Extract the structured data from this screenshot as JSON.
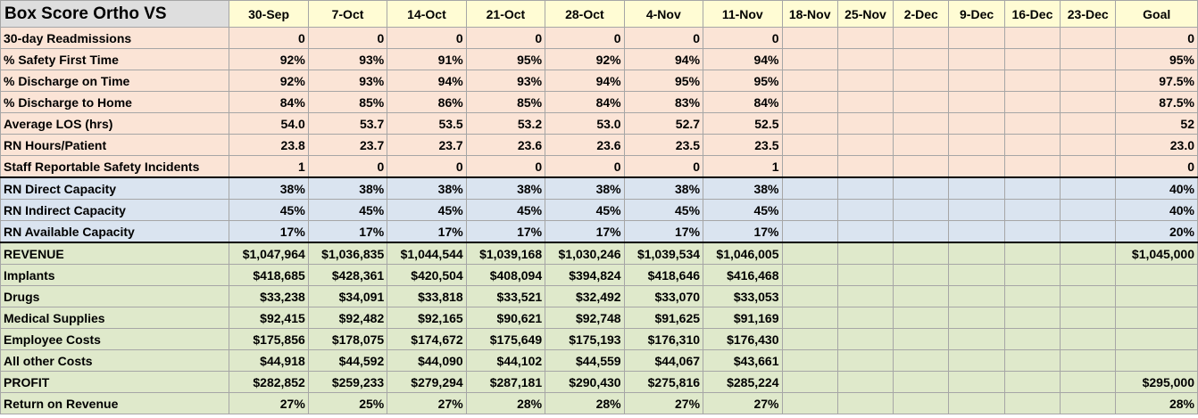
{
  "title": "Box Score Ortho VS",
  "columns": [
    "30-Sep",
    "7-Oct",
    "14-Oct",
    "21-Oct",
    "28-Oct",
    "4-Nov",
    "11-Nov",
    "18-Nov",
    "25-Nov",
    "2-Dec",
    "9-Dec",
    "16-Dec",
    "23-Dec",
    "Goal"
  ],
  "groups": [
    {
      "name": "quality",
      "color": "#fbe4d6",
      "rows": [
        {
          "label": "30-day Readmissions",
          "values": [
            "0",
            "0",
            "0",
            "0",
            "0",
            "0",
            "0",
            "",
            "",
            "",
            "",
            "",
            "",
            "0"
          ]
        },
        {
          "label": "% Safety First Time",
          "values": [
            "92%",
            "93%",
            "91%",
            "95%",
            "92%",
            "94%",
            "94%",
            "",
            "",
            "",
            "",
            "",
            "",
            "95%"
          ]
        },
        {
          "label": "% Discharge on Time",
          "values": [
            "92%",
            "93%",
            "94%",
            "93%",
            "94%",
            "95%",
            "95%",
            "",
            "",
            "",
            "",
            "",
            "",
            "97.5%"
          ]
        },
        {
          "label": "% Discharge to Home",
          "values": [
            "84%",
            "85%",
            "86%",
            "85%",
            "84%",
            "83%",
            "84%",
            "",
            "",
            "",
            "",
            "",
            "",
            "87.5%"
          ]
        },
        {
          "label": "Average LOS (hrs)",
          "values": [
            "54.0",
            "53.7",
            "53.5",
            "53.2",
            "53.0",
            "52.7",
            "52.5",
            "",
            "",
            "",
            "",
            "",
            "",
            "52"
          ]
        },
        {
          "label": "RN Hours/Patient",
          "values": [
            "23.8",
            "23.7",
            "23.7",
            "23.6",
            "23.6",
            "23.5",
            "23.5",
            "",
            "",
            "",
            "",
            "",
            "",
            "23.0"
          ]
        },
        {
          "label": "Staff Reportable Safety Incidents",
          "values": [
            "1",
            "0",
            "0",
            "0",
            "0",
            "0",
            "1",
            "",
            "",
            "",
            "",
            "",
            "",
            "0"
          ]
        }
      ]
    },
    {
      "name": "capacity",
      "color": "#dae4f0",
      "rows": [
        {
          "label": "RN Direct Capacity",
          "values": [
            "38%",
            "38%",
            "38%",
            "38%",
            "38%",
            "38%",
            "38%",
            "",
            "",
            "",
            "",
            "",
            "",
            "40%"
          ]
        },
        {
          "label": "RN Indirect Capacity",
          "values": [
            "45%",
            "45%",
            "45%",
            "45%",
            "45%",
            "45%",
            "45%",
            "",
            "",
            "",
            "",
            "",
            "",
            "40%"
          ]
        },
        {
          "label": "RN Available Capacity",
          "values": [
            "17%",
            "17%",
            "17%",
            "17%",
            "17%",
            "17%",
            "17%",
            "",
            "",
            "",
            "",
            "",
            "",
            "20%"
          ]
        }
      ]
    },
    {
      "name": "finance",
      "color": "#dfe9cb",
      "rows": [
        {
          "label": "REVENUE",
          "values": [
            "$1,047,964",
            "$1,036,835",
            "$1,044,544",
            "$1,039,168",
            "$1,030,246",
            "$1,039,534",
            "$1,046,005",
            "",
            "",
            "",
            "",
            "",
            "",
            "$1,045,000"
          ]
        },
        {
          "label": "Implants",
          "values": [
            "$418,685",
            "$428,361",
            "$420,504",
            "$408,094",
            "$394,824",
            "$418,646",
            "$416,468",
            "",
            "",
            "",
            "",
            "",
            "",
            ""
          ]
        },
        {
          "label": "Drugs",
          "values": [
            "$33,238",
            "$34,091",
            "$33,818",
            "$33,521",
            "$32,492",
            "$33,070",
            "$33,053",
            "",
            "",
            "",
            "",
            "",
            "",
            ""
          ]
        },
        {
          "label": "Medical Supplies",
          "values": [
            "$92,415",
            "$92,482",
            "$92,165",
            "$90,621",
            "$92,748",
            "$91,625",
            "$91,169",
            "",
            "",
            "",
            "",
            "",
            "",
            ""
          ]
        },
        {
          "label": "Employee Costs",
          "values": [
            "$175,856",
            "$178,075",
            "$174,672",
            "$175,649",
            "$175,193",
            "$176,310",
            "$176,430",
            "",
            "",
            "",
            "",
            "",
            "",
            ""
          ]
        },
        {
          "label": "All other Costs",
          "values": [
            "$44,918",
            "$44,592",
            "$44,090",
            "$44,102",
            "$44,559",
            "$44,067",
            "$43,661",
            "",
            "",
            "",
            "",
            "",
            "",
            ""
          ]
        },
        {
          "label": "PROFIT",
          "values": [
            "$282,852",
            "$259,233",
            "$279,294",
            "$287,181",
            "$290,430",
            "$275,816",
            "$285,224",
            "",
            "",
            "",
            "",
            "",
            "",
            "$295,000"
          ]
        },
        {
          "label": "Return on Revenue",
          "values": [
            "27%",
            "25%",
            "27%",
            "28%",
            "28%",
            "27%",
            "27%",
            "",
            "",
            "",
            "",
            "",
            "",
            "28%"
          ]
        }
      ]
    }
  ]
}
